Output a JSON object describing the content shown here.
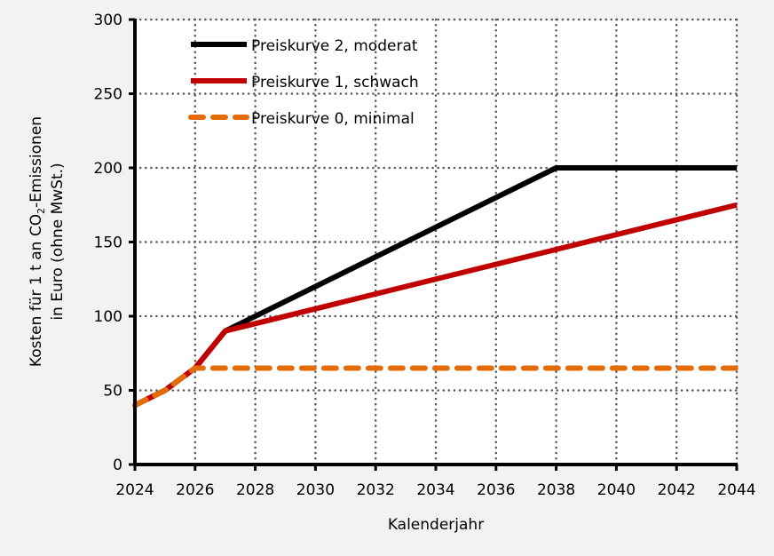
{
  "chart_data": {
    "type": "line",
    "title": "",
    "xlabel": "Kalenderjahr",
    "ylabel_line1_pre": "Kosten für 1 t an CO",
    "ylabel_line1_sub": "2",
    "ylabel_line1_post": "-Emissionen",
    "ylabel_line2": "in Euro (ohne MwSt.)",
    "xlim": [
      2024,
      2044
    ],
    "ylim": [
      0,
      300
    ],
    "xticks": [
      2024,
      2026,
      2028,
      2030,
      2032,
      2034,
      2036,
      2038,
      2040,
      2042,
      2044
    ],
    "yticks": [
      0,
      50,
      100,
      150,
      200,
      250,
      300
    ],
    "grid": true,
    "legend_position": "top-left",
    "series": [
      {
        "name": "Preiskurve 2, moderat",
        "color": "#000000",
        "dashed": false,
        "x": [
          2024,
          2025,
          2026,
          2027,
          2038,
          2044
        ],
        "y": [
          40,
          50,
          65,
          90,
          200,
          200
        ]
      },
      {
        "name": "Preiskurve 1, schwach",
        "color": "#c00000",
        "dashed": false,
        "x": [
          2024,
          2025,
          2026,
          2027,
          2044
        ],
        "y": [
          40,
          50,
          65,
          90,
          175
        ]
      },
      {
        "name": "Preiskurve 0, minimal",
        "color": "#e36c09",
        "dashed": true,
        "x": [
          2024,
          2025,
          2026,
          2044
        ],
        "y": [
          40,
          50,
          65,
          65
        ]
      }
    ]
  }
}
